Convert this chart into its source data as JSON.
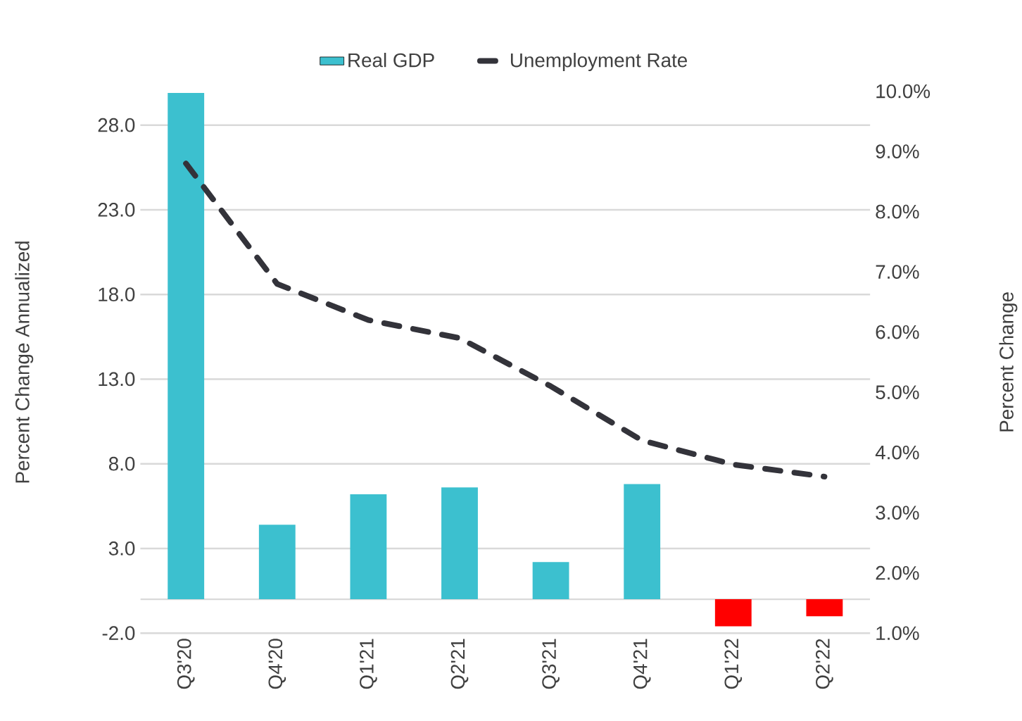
{
  "chart_data": {
    "type": "bar",
    "ylabel": "Percent Change Annualized",
    "y2label": "Percent Change",
    "categories": [
      "Q3'20",
      "Q4'20",
      "Q1'21",
      "Q2'21",
      "Q3'21",
      "Q4'21",
      "Q1'22",
      "Q2'22"
    ],
    "series": [
      {
        "name": "Real GDP",
        "colors": [
          "#3cc0cf",
          "#3cc0cf",
          "#3cc0cf",
          "#3cc0cf",
          "#3cc0cf",
          "#3cc0cf",
          "#ff0000",
          "#ff0000"
        ],
        "values": [
          29.9,
          4.4,
          6.2,
          6.6,
          2.2,
          6.8,
          -1.6,
          -1.0
        ]
      },
      {
        "name": "Unemployment Rate",
        "type": "line",
        "axis": "y2",
        "color": "#33333a",
        "line_style": "dashed",
        "values": [
          8.8,
          6.8,
          6.2,
          5.9,
          5.1,
          4.2,
          3.8,
          3.6
        ]
      }
    ],
    "ylim": [
      -2,
      30
    ],
    "yticks": [
      {
        "value": -2,
        "label": "-2.0"
      },
      {
        "value": 3,
        "label": "3.0"
      },
      {
        "value": 8,
        "label": "8.0"
      },
      {
        "value": 13,
        "label": "13.0"
      },
      {
        "value": 18,
        "label": "18.0"
      },
      {
        "value": 23,
        "label": "23.0"
      },
      {
        "value": 28,
        "label": "28.0"
      }
    ],
    "y2lim": [
      1,
      10
    ],
    "y2ticks": [
      {
        "value": 1,
        "label": "1.0%"
      },
      {
        "value": 2,
        "label": "2.0%"
      },
      {
        "value": 3,
        "label": "3.0%"
      },
      {
        "value": 4,
        "label": "4.0%"
      },
      {
        "value": 5,
        "label": "5.0%"
      },
      {
        "value": 6,
        "label": "6.0%"
      },
      {
        "value": 7,
        "label": "7.0%"
      },
      {
        "value": 8,
        "label": "8.0%"
      },
      {
        "value": 9,
        "label": "9.0%"
      },
      {
        "value": 10,
        "label": "10.0%"
      }
    ],
    "grid": "y",
    "legend": "top",
    "marker": "none"
  }
}
